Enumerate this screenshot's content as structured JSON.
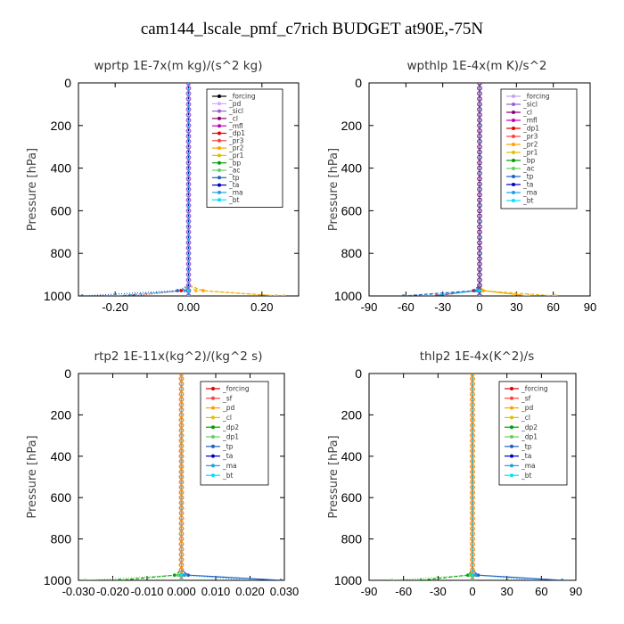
{
  "figure_title": "cam144_lscale_pmf_c7rich  BUDGET at90E,-75N",
  "chart_data": [
    {
      "type": "line",
      "title": "wprtp   1E-7x(m kg)/(s^2 kg)",
      "ylabel": "Pressure [hPa]",
      "xlim": [
        -0.3,
        0.3
      ],
      "ylim": [
        1000,
        0
      ],
      "xticks": [
        -0.2,
        0.0,
        0.2
      ],
      "xtick_labels": [
        "-0.20",
        "0.00",
        "0.20"
      ],
      "yticks": [
        0,
        200,
        400,
        600,
        800,
        1000
      ],
      "y": [
        0,
        25,
        50,
        75,
        100,
        125,
        150,
        175,
        200,
        225,
        250,
        275,
        300,
        325,
        350,
        375,
        400,
        425,
        450,
        475,
        500,
        525,
        550,
        575,
        600,
        625,
        650,
        675,
        700,
        725,
        750,
        775,
        800,
        825,
        850,
        875,
        900,
        925,
        950,
        975,
        1000
      ],
      "series": [
        {
          "name": "_forcing",
          "color": "#000000",
          "tail": [
            0,
            0
          ]
        },
        {
          "name": "_pd",
          "color": "#d8a6ff",
          "tail": [
            0,
            0
          ]
        },
        {
          "name": "_sicl",
          "color": "#9a5fd0",
          "tail": [
            0,
            0
          ]
        },
        {
          "name": "_cl",
          "color": "#8b0070",
          "tail": [
            0,
            0
          ]
        },
        {
          "name": "_mfl",
          "color": "#c000c0",
          "tail": [
            0,
            0
          ]
        },
        {
          "name": "_dp1",
          "color": "#e00000",
          "tail": [
            -0.02,
            -0.15
          ]
        },
        {
          "name": "_pr3",
          "color": "#ff4040",
          "tail": [
            0,
            0
          ]
        },
        {
          "name": "_pr2",
          "color": "#ffa000",
          "tail": [
            0.04,
            0.24
          ]
        },
        {
          "name": "_pr1",
          "color": "#e0c000",
          "tail": [
            0.02,
            0.26
          ]
        },
        {
          "name": "_bp",
          "color": "#00a000",
          "tail": [
            0,
            0
          ]
        },
        {
          "name": "_ac",
          "color": "#60d060",
          "tail": [
            0,
            0
          ]
        },
        {
          "name": "_tp",
          "color": "#2060c0",
          "tail": [
            -0.03,
            -0.29
          ]
        },
        {
          "name": "_ta",
          "color": "#0000c0",
          "tail": [
            0,
            0
          ]
        },
        {
          "name": "_ma",
          "color": "#20a0e0",
          "tail": [
            -0.01,
            -0.2
          ]
        },
        {
          "name": "_bt",
          "color": "#00e0ff",
          "tail": [
            0,
            0
          ]
        }
      ]
    },
    {
      "type": "line",
      "title": "wpthlp   1E-4x(m K)/s^2",
      "ylabel": "Pressure [hPa]",
      "xlim": [
        -90,
        90
      ],
      "ylim": [
        1000,
        0
      ],
      "xticks": [
        -90,
        -60,
        -30,
        0,
        30,
        60,
        90
      ],
      "xtick_labels": [
        "-90",
        "-60",
        "-30",
        "0",
        "30",
        "60",
        "90"
      ],
      "yticks": [
        0,
        200,
        400,
        600,
        800,
        1000
      ],
      "y": [
        0,
        25,
        50,
        75,
        100,
        125,
        150,
        175,
        200,
        225,
        250,
        275,
        300,
        325,
        350,
        375,
        400,
        425,
        450,
        475,
        500,
        525,
        550,
        575,
        600,
        625,
        650,
        675,
        700,
        725,
        750,
        775,
        800,
        825,
        850,
        875,
        900,
        925,
        950,
        975,
        1000
      ],
      "series": [
        {
          "name": "_forcing",
          "color": "#c8a0e8",
          "tail": [
            0,
            0
          ]
        },
        {
          "name": "_sicl",
          "color": "#9a5fd0",
          "tail": [
            0,
            0
          ]
        },
        {
          "name": "_cl",
          "color": "#8b0070",
          "tail": [
            0,
            0
          ]
        },
        {
          "name": "_mfl",
          "color": "#c000c0",
          "tail": [
            0,
            0
          ]
        },
        {
          "name": "_dp1",
          "color": "#e00000",
          "tail": [
            -5,
            -35
          ]
        },
        {
          "name": "_pr3",
          "color": "#ff4040",
          "tail": [
            0,
            0
          ]
        },
        {
          "name": "_pr2",
          "color": "#ffa000",
          "tail": [
            3,
            40
          ]
        },
        {
          "name": "_pr1",
          "color": "#e0c000",
          "tail": [
            2,
            62
          ]
        },
        {
          "name": "_bp",
          "color": "#00a000",
          "tail": [
            0,
            0
          ]
        },
        {
          "name": "_ac",
          "color": "#60d060",
          "tail": [
            0,
            0
          ]
        },
        {
          "name": "_tp",
          "color": "#2060c0",
          "tail": [
            -4,
            -62
          ]
        },
        {
          "name": "_ta",
          "color": "#0000c0",
          "tail": [
            0,
            0
          ]
        },
        {
          "name": "_ma",
          "color": "#20a0e0",
          "tail": [
            -2,
            -40
          ]
        },
        {
          "name": "_bt",
          "color": "#00e0ff",
          "tail": [
            0,
            0
          ]
        }
      ]
    },
    {
      "type": "line",
      "title": "rtp2   1E-11x(kg^2)/(kg^2 s)",
      "ylabel": "Pressure [hPa]",
      "xlim": [
        -0.03,
        0.03
      ],
      "ylim": [
        1000,
        0
      ],
      "xticks": [
        -0.03,
        -0.02,
        -0.01,
        0.0,
        0.01,
        0.02,
        0.03
      ],
      "xtick_labels": [
        "-0.030",
        "-0.020",
        "-0.010",
        "0.000",
        "0.010",
        "0.020",
        "0.030"
      ],
      "yticks": [
        0,
        200,
        400,
        600,
        800,
        1000
      ],
      "y": [
        0,
        25,
        50,
        75,
        100,
        125,
        150,
        175,
        200,
        225,
        250,
        275,
        300,
        325,
        350,
        375,
        400,
        425,
        450,
        475,
        500,
        525,
        550,
        575,
        600,
        625,
        650,
        675,
        700,
        725,
        750,
        775,
        800,
        825,
        850,
        875,
        900,
        925,
        950,
        975,
        1000
      ],
      "series": [
        {
          "name": "_forcing",
          "color": "#e00000",
          "tail": [
            0,
            0
          ]
        },
        {
          "name": "_sf",
          "color": "#ff4040",
          "tail": [
            0,
            0
          ]
        },
        {
          "name": "_pd",
          "color": "#ffa000",
          "tail": [
            0,
            0
          ]
        },
        {
          "name": "_cl",
          "color": "#e0c000",
          "tail": [
            0,
            0
          ]
        },
        {
          "name": "_dp2",
          "color": "#00a000",
          "tail": [
            -0.002,
            -0.018
          ]
        },
        {
          "name": "_dp1",
          "color": "#60d060",
          "tail": [
            -0.001,
            -0.028
          ]
        },
        {
          "name": "_tp",
          "color": "#2060c0",
          "tail": [
            0.002,
            0.029
          ]
        },
        {
          "name": "_ta",
          "color": "#0000c0",
          "tail": [
            0,
            0
          ]
        },
        {
          "name": "_ma",
          "color": "#20a0e0",
          "tail": [
            0.001,
            0.02
          ]
        },
        {
          "name": "_bt",
          "color": "#00e0ff",
          "tail": [
            0,
            0
          ]
        }
      ]
    },
    {
      "type": "line",
      "title": "thlp2   1E-4x(K^2)/s",
      "ylabel": "Pressure [hPa]",
      "xlim": [
        -90,
        90
      ],
      "ylim": [
        1000,
        0
      ],
      "xticks": [
        -90,
        -60,
        -30,
        0,
        30,
        60,
        90
      ],
      "xtick_labels": [
        "-90",
        "-60",
        "-30",
        "0",
        "30",
        "60",
        "90"
      ],
      "yticks": [
        0,
        200,
        400,
        600,
        800,
        1000
      ],
      "y": [
        0,
        25,
        50,
        75,
        100,
        125,
        150,
        175,
        200,
        225,
        250,
        275,
        300,
        325,
        350,
        375,
        400,
        425,
        450,
        475,
        500,
        525,
        550,
        575,
        600,
        625,
        650,
        675,
        700,
        725,
        750,
        775,
        800,
        825,
        850,
        875,
        900,
        925,
        950,
        975,
        1000
      ],
      "series": [
        {
          "name": "_forcing",
          "color": "#e00000",
          "tail": [
            0,
            0
          ]
        },
        {
          "name": "_sf",
          "color": "#ff4040",
          "tail": [
            0,
            0
          ]
        },
        {
          "name": "_pd",
          "color": "#ffa000",
          "tail": [
            0,
            0
          ]
        },
        {
          "name": "_cl",
          "color": "#e0c000",
          "tail": [
            0,
            0
          ]
        },
        {
          "name": "_dp2",
          "color": "#00a000",
          "tail": [
            -4,
            -45
          ]
        },
        {
          "name": "_dp1",
          "color": "#60d060",
          "tail": [
            -2,
            -70
          ]
        },
        {
          "name": "_tp",
          "color": "#2060c0",
          "tail": [
            5,
            78
          ]
        },
        {
          "name": "_ta",
          "color": "#0000c0",
          "tail": [
            0,
            0
          ]
        },
        {
          "name": "_ma",
          "color": "#20a0e0",
          "tail": [
            3,
            55
          ]
        },
        {
          "name": "_bt",
          "color": "#00e0ff",
          "tail": [
            0,
            0
          ]
        }
      ]
    }
  ]
}
